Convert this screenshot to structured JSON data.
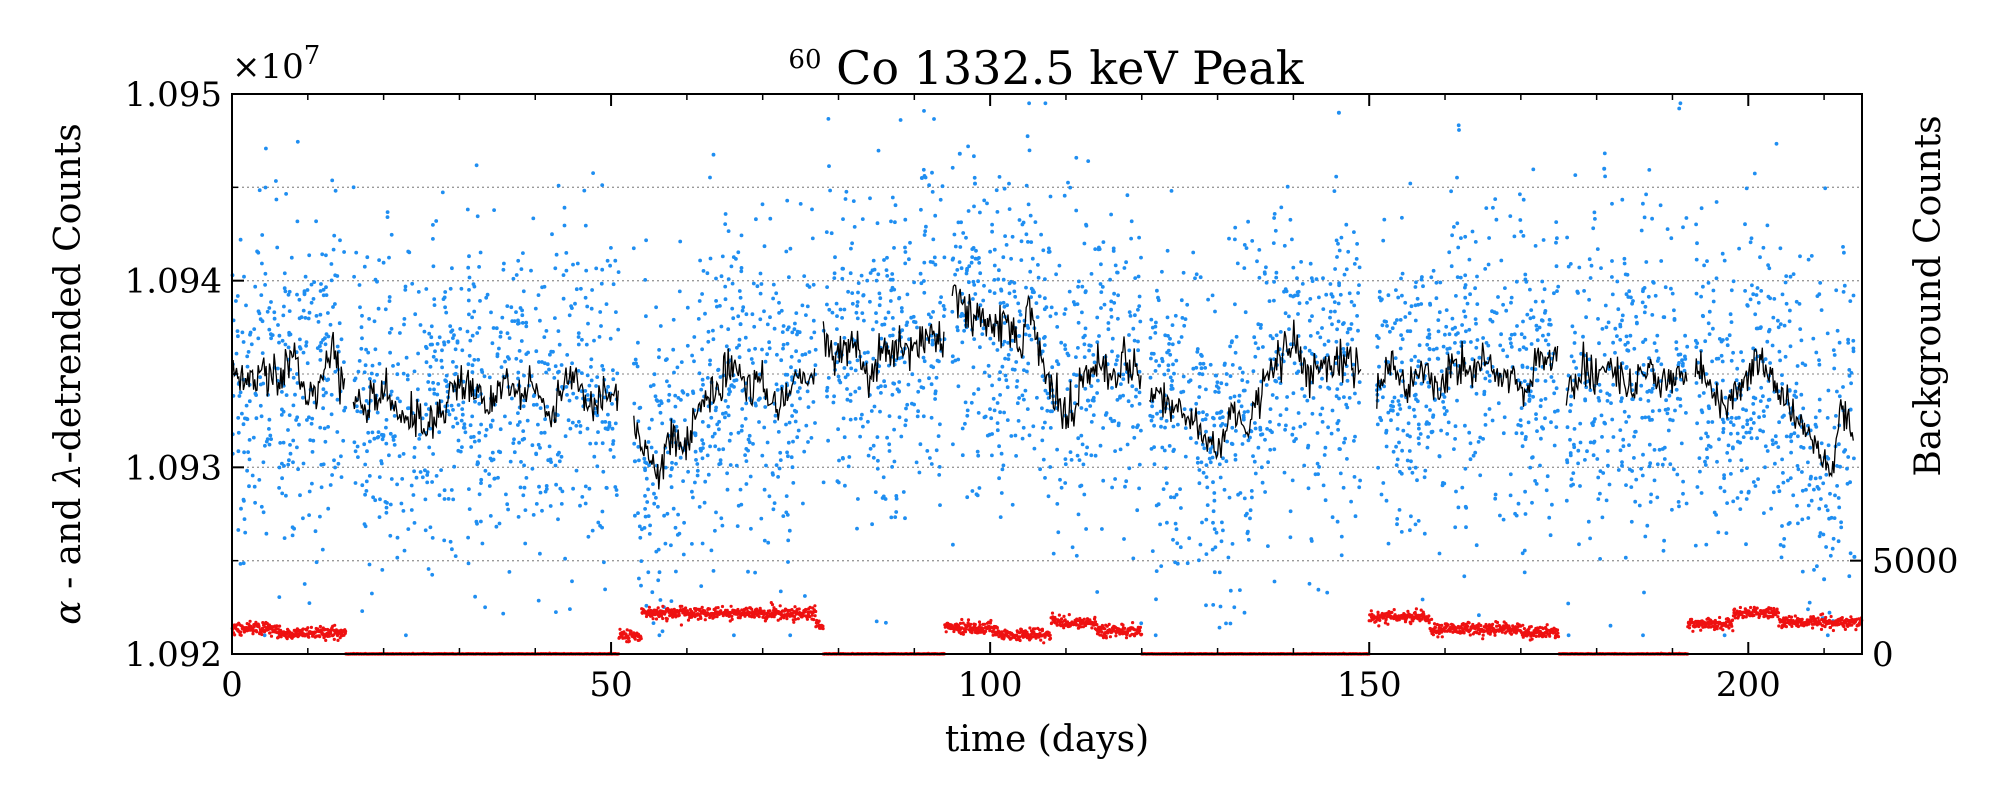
{
  "chart_data": {
    "type": "scatter",
    "title": {
      "superscript": "60",
      "main": "Co 1332.5 keV Peak"
    },
    "xlabel": "time (days)",
    "ylabel_left": {
      "greek1": "α",
      "part1": " - and ",
      "greek2": "λ",
      "part2": "-detrended Counts"
    },
    "ylabel_right": "Background Counts",
    "y_offset_label": {
      "base": "×10",
      "exponent": "7"
    },
    "xlim": [
      0,
      215
    ],
    "ylim_left": [
      1.092,
      1.095
    ],
    "ylim_right": [
      0,
      30000
    ],
    "x_ticks": [
      {
        "value": 0,
        "label": "0"
      },
      {
        "value": 50,
        "label": "50"
      },
      {
        "value": 100,
        "label": "100"
      },
      {
        "value": 150,
        "label": "150"
      },
      {
        "value": 200,
        "label": "200"
      }
    ],
    "y_left_ticks": [
      {
        "value": 1.092,
        "label": "1.092"
      },
      {
        "value": 1.093,
        "label": "1.093"
      },
      {
        "value": 1.094,
        "label": "1.094"
      },
      {
        "value": 1.095,
        "label": "1.095"
      }
    ],
    "y_right_ticks": [
      {
        "value": 0,
        "label": "0"
      },
      {
        "value": 5000,
        "label": "5000"
      }
    ],
    "grid": "horizontal dotted",
    "colors": {
      "raw": "#1f8ef1",
      "smoothed": "#000000",
      "background": "#ee1111"
    },
    "series": [
      {
        "name": "raw counts (blue points)",
        "style": "scatter",
        "segments": [
          [
            0,
            15
          ],
          [
            16,
            51
          ],
          [
            53,
            77
          ],
          [
            78,
            94
          ],
          [
            95,
            120
          ],
          [
            121,
            149
          ],
          [
            151,
            175
          ],
          [
            176,
            192
          ],
          [
            193,
            214
          ]
        ],
        "spread_sigma": 0.00045,
        "points_per_day": 20,
        "notable_points": [
          {
            "x": 96,
            "y": 1.09468
          },
          {
            "x": 91,
            "y": 1.09455
          },
          {
            "x": 98,
            "y": 1.09452
          },
          {
            "x": 146,
            "y": 1.0949
          },
          {
            "x": 181,
            "y": 1.0946
          },
          {
            "x": 210,
            "y": 1.0924
          },
          {
            "x": 214,
            "y": 1.09252
          }
        ]
      },
      {
        "name": "detrended counts (black line)",
        "style": "line",
        "keypoints": [
          [
            0,
            1.09355
          ],
          [
            2,
            1.09345
          ],
          [
            4,
            1.09352
          ],
          [
            6,
            1.09348
          ],
          [
            8,
            1.09358
          ],
          [
            10,
            1.0934
          ],
          [
            12,
            1.09345
          ],
          [
            13,
            1.09365
          ],
          [
            15,
            1.09342
          ],
          [
            16,
            1.09335
          ],
          [
            18,
            1.0933
          ],
          [
            20,
            1.09345
          ],
          [
            22,
            1.09325
          ],
          [
            24,
            1.0933
          ],
          [
            26,
            1.0932
          ],
          [
            28,
            1.09335
          ],
          [
            30,
            1.09348
          ],
          [
            32,
            1.0934
          ],
          [
            34,
            1.0933
          ],
          [
            36,
            1.09345
          ],
          [
            38,
            1.09338
          ],
          [
            40,
            1.09342
          ],
          [
            42,
            1.09325
          ],
          [
            44,
            1.09348
          ],
          [
            46,
            1.0934
          ],
          [
            48,
            1.09335
          ],
          [
            51,
            1.09342
          ],
          [
            53,
            1.09325
          ],
          [
            55,
            1.09305
          ],
          [
            56,
            1.09295
          ],
          [
            58,
            1.09318
          ],
          [
            60,
            1.09312
          ],
          [
            62,
            1.09335
          ],
          [
            64,
            1.0934
          ],
          [
            66,
            1.09355
          ],
          [
            68,
            1.09345
          ],
          [
            70,
            1.0935
          ],
          [
            72,
            1.0933
          ],
          [
            74,
            1.09345
          ],
          [
            77,
            1.0935
          ],
          [
            78,
            1.0937
          ],
          [
            80,
            1.0936
          ],
          [
            82,
            1.09368
          ],
          [
            84,
            1.09345
          ],
          [
            86,
            1.0936
          ],
          [
            88,
            1.09365
          ],
          [
            90,
            1.09368
          ],
          [
            92,
            1.09372
          ],
          [
            94,
            1.09365
          ],
          [
            95,
            1.09395
          ],
          [
            97,
            1.09385
          ],
          [
            99,
            1.0938
          ],
          [
            100,
            1.09375
          ],
          [
            102,
            1.09378
          ],
          [
            104,
            1.0937
          ],
          [
            105,
            1.0939
          ],
          [
            106,
            1.09372
          ],
          [
            107,
            1.09355
          ],
          [
            108,
            1.0934
          ],
          [
            110,
            1.09325
          ],
          [
            112,
            1.09345
          ],
          [
            114,
            1.09355
          ],
          [
            116,
            1.09345
          ],
          [
            118,
            1.09355
          ],
          [
            120,
            1.0935
          ],
          [
            121,
            1.09342
          ],
          [
            124,
            1.0933
          ],
          [
            127,
            1.09325
          ],
          [
            129,
            1.0931
          ],
          [
            130,
            1.09308
          ],
          [
            132,
            1.0933
          ],
          [
            134,
            1.0932
          ],
          [
            136,
            1.09345
          ],
          [
            138,
            1.0936
          ],
          [
            140,
            1.09368
          ],
          [
            142,
            1.0935
          ],
          [
            144,
            1.09355
          ],
          [
            146,
            1.0936
          ],
          [
            149,
            1.09358
          ],
          [
            151,
            1.0934
          ],
          [
            153,
            1.09355
          ],
          [
            155,
            1.09345
          ],
          [
            157,
            1.09352
          ],
          [
            159,
            1.0934
          ],
          [
            161,
            1.09355
          ],
          [
            163,
            1.09348
          ],
          [
            165,
            1.09358
          ],
          [
            167,
            1.09352
          ],
          [
            169,
            1.0935
          ],
          [
            171,
            1.09338
          ],
          [
            172,
            1.09358
          ],
          [
            175,
            1.0936
          ],
          [
            176,
            1.09338
          ],
          [
            178,
            1.0935
          ],
          [
            180,
            1.09345
          ],
          [
            182,
            1.09358
          ],
          [
            184,
            1.0934
          ],
          [
            186,
            1.09352
          ],
          [
            188,
            1.09348
          ],
          [
            190,
            1.0935
          ],
          [
            192,
            1.09345
          ],
          [
            193,
            1.09355
          ],
          [
            195,
            1.09345
          ],
          [
            197,
            1.0933
          ],
          [
            199,
            1.0934
          ],
          [
            201,
            1.09358
          ],
          [
            203,
            1.09345
          ],
          [
            205,
            1.09335
          ],
          [
            207,
            1.09325
          ],
          [
            209,
            1.0931
          ],
          [
            211,
            1.09295
          ],
          [
            212,
            1.0933
          ],
          [
            214,
            1.0932
          ]
        ]
      },
      {
        "name": "background counts (red points)",
        "style": "scatter",
        "axis": "right",
        "levels": [
          {
            "from": 0,
            "to": 6,
            "level": 1400
          },
          {
            "from": 6,
            "to": 15,
            "level": 1100
          },
          {
            "from": 15,
            "to": 51,
            "level": 0
          },
          {
            "from": 51,
            "to": 54,
            "level": 1000
          },
          {
            "from": 54,
            "to": 77,
            "level": 2200
          },
          {
            "from": 77,
            "to": 78,
            "level": 1500
          },
          {
            "from": 78,
            "to": 94,
            "level": 0
          },
          {
            "from": 94,
            "to": 101,
            "level": 1400
          },
          {
            "from": 101,
            "to": 108,
            "level": 1050
          },
          {
            "from": 108,
            "to": 114,
            "level": 1700
          },
          {
            "from": 114,
            "to": 120,
            "level": 1250
          },
          {
            "from": 120,
            "to": 150,
            "level": 0
          },
          {
            "from": 150,
            "to": 158,
            "level": 2000
          },
          {
            "from": 158,
            "to": 170,
            "level": 1350
          },
          {
            "from": 170,
            "to": 175,
            "level": 1150
          },
          {
            "from": 175,
            "to": 192,
            "level": 0
          },
          {
            "from": 192,
            "to": 198,
            "level": 1600
          },
          {
            "from": 198,
            "to": 204,
            "level": 2200
          },
          {
            "from": 204,
            "to": 215,
            "level": 1700
          }
        ]
      }
    ]
  }
}
